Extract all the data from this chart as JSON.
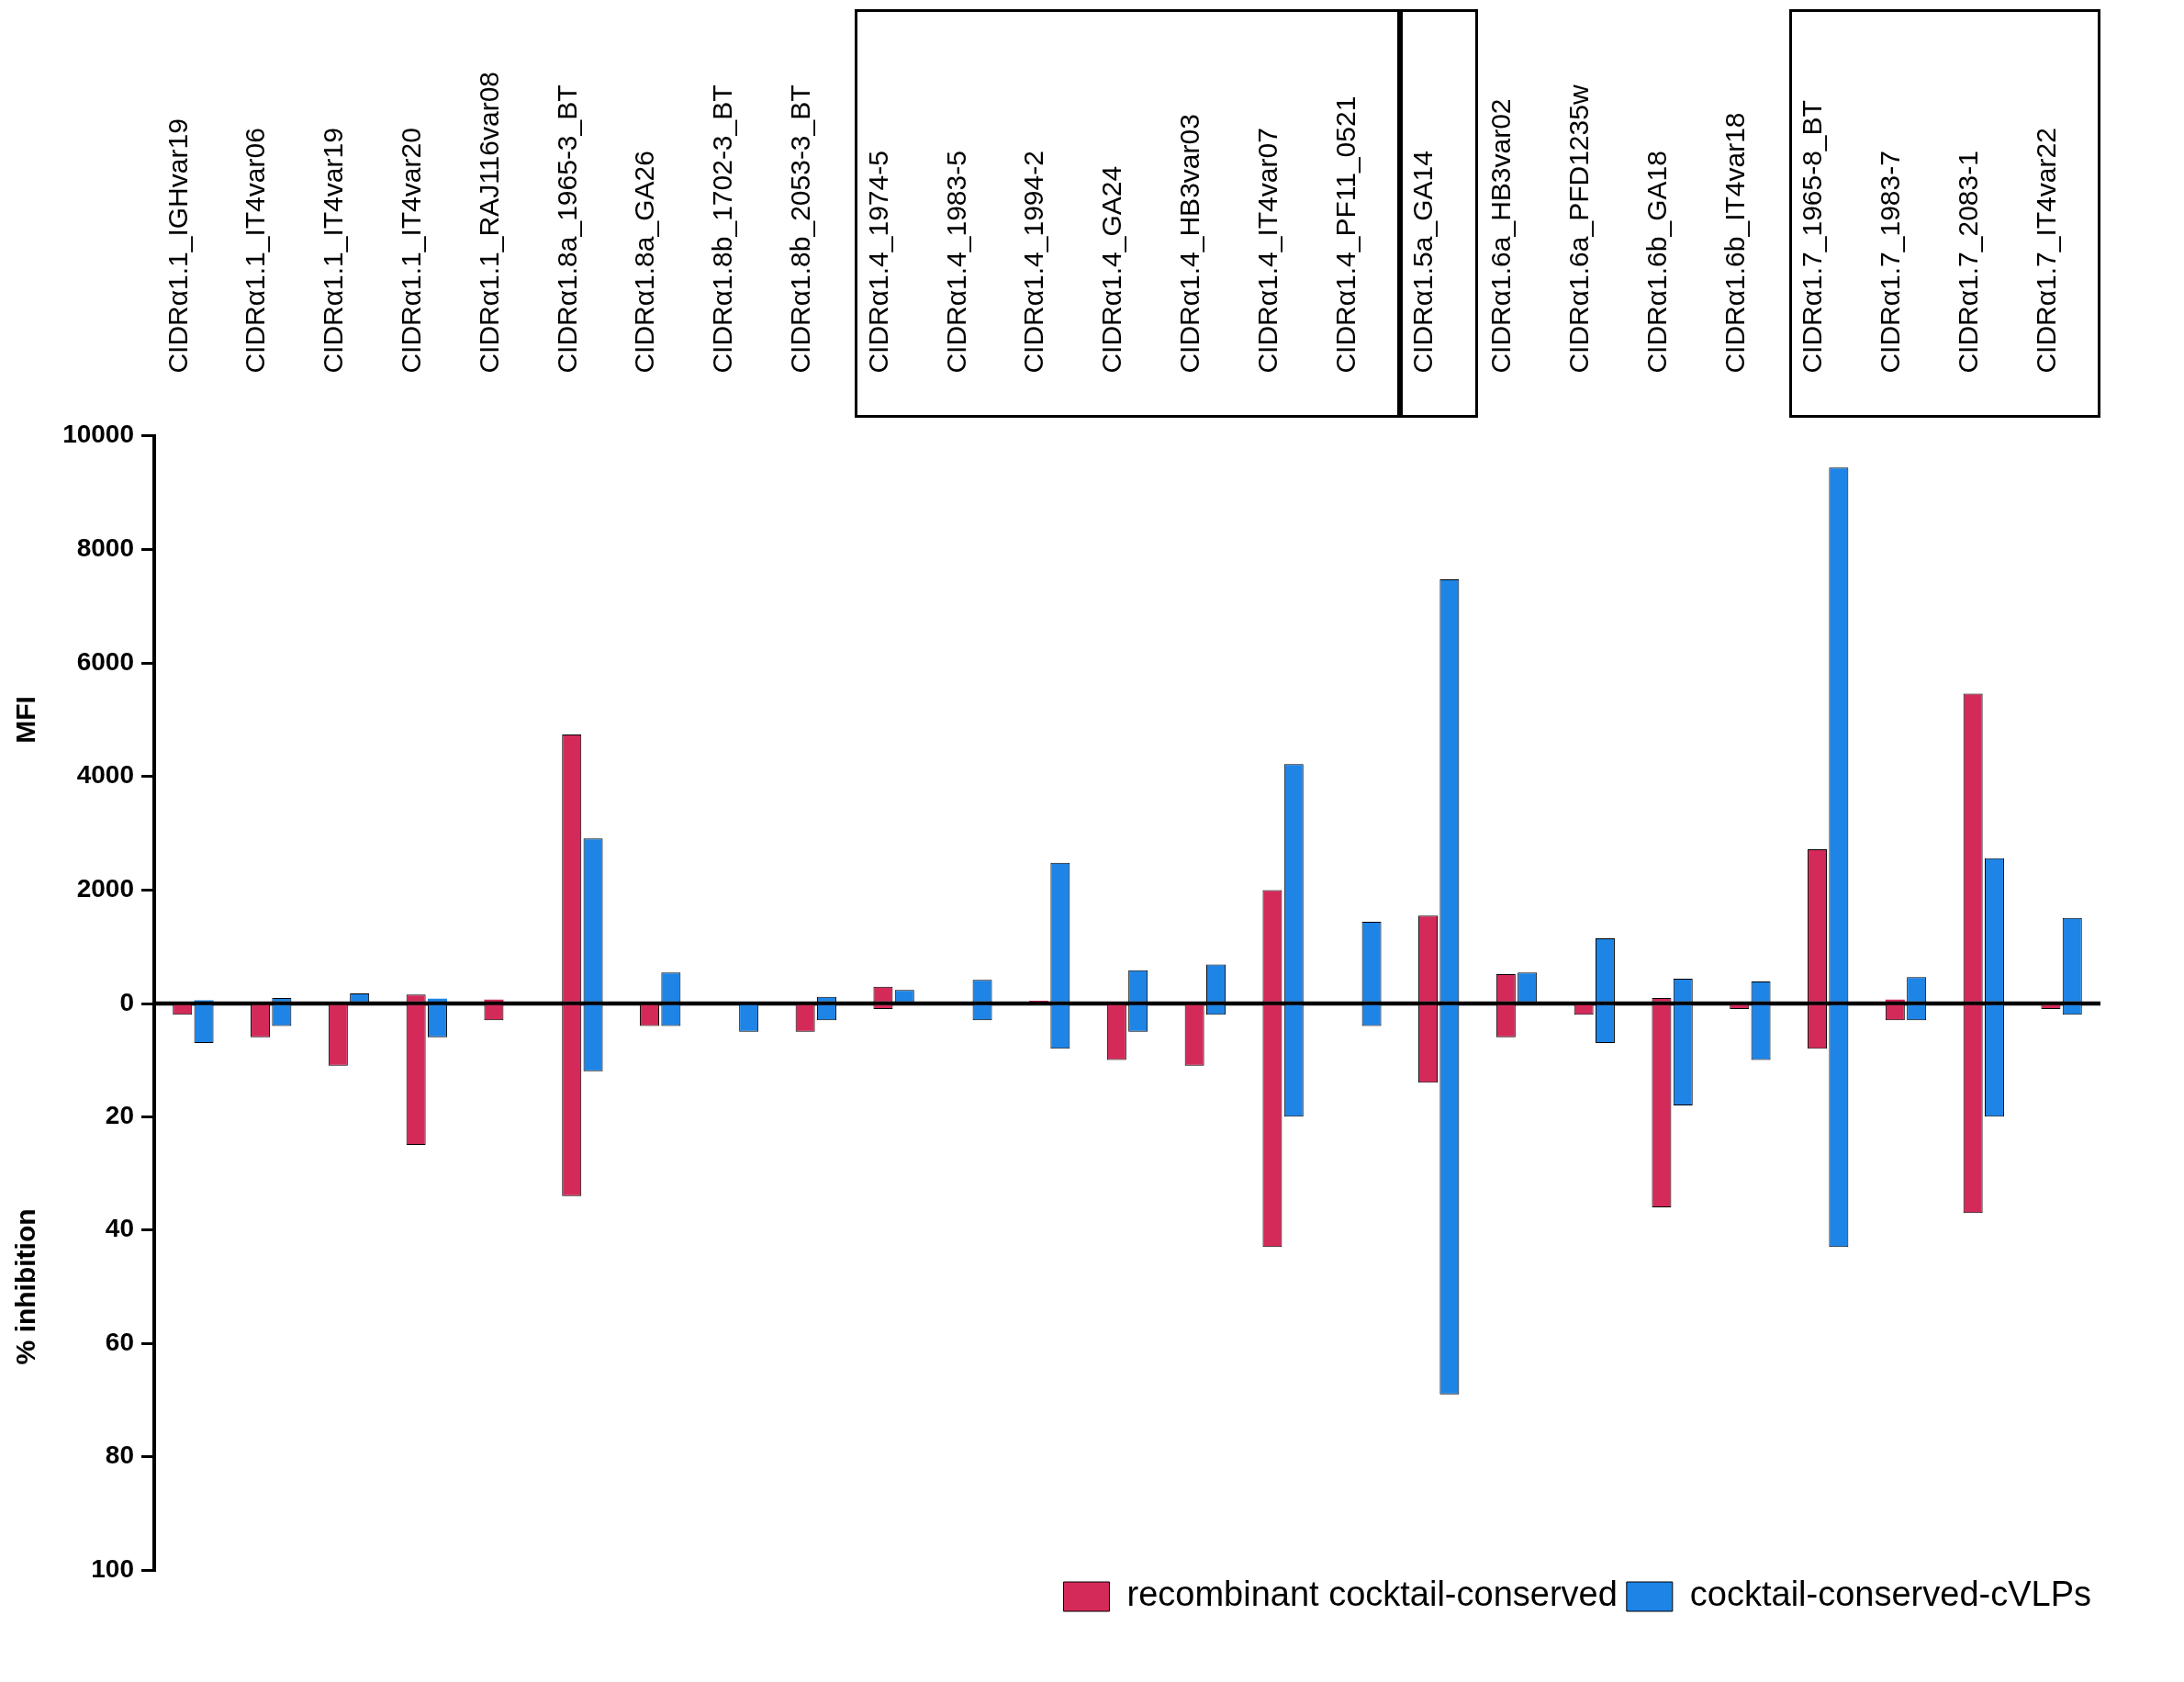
{
  "chart_data": [
    {
      "type": "bar",
      "categories": [
        "CIDRα1.1_IGHvar19",
        "CIDRα1.1_IT4var06",
        "CIDRα1.1_IT4var19",
        "CIDRα1.1_IT4var20",
        "CIDRα1.1_RAJ116var08",
        "CIDRα1.8a_1965-3_BT",
        "CIDRα1.8a_GA26",
        "CIDRα1.8b_1702-3_BT",
        "CIDRα1.8b_2053-3_BT",
        "CIDRα1.4_1974-5",
        "CIDRα1.4_1983-5",
        "CIDRα1.4_1994-2",
        "CIDRα1.4_GA24",
        "CIDRα1.4_HB3var03",
        "CIDRα1.4_IT4var07",
        "CIDRα1.4_PF11_0521",
        "CIDRα1.5a_GA14",
        "CIDRα1.6a_HB3var02",
        "CIDRα1.6a_PFD1235w",
        "CIDRα1.6b_GA18",
        "CIDRα1.6b_IT4var18",
        "CIDRα1.7_1965-8_BT",
        "CIDRα1.7_1983-7",
        "CIDRα1.7_2083-1",
        "CIDRα1.7_IT4var22"
      ],
      "series": [
        {
          "color": "#d42a5a",
          "values": [
            0,
            0,
            0,
            160,
            70,
            4740,
            0,
            0,
            0,
            300,
            0,
            50,
            0,
            0,
            2000,
            0,
            1550,
            520,
            0,
            100,
            0,
            2720,
            70,
            5460,
            0
          ]
        },
        {
          "color": "#1e84e6",
          "values": [
            60,
            100,
            180,
            90,
            null,
            2910,
            550,
            0,
            120,
            240,
            420,
            2480,
            590,
            690,
            4220,
            1440,
            7470,
            550,
            1150,
            440,
            390,
            9440,
            470,
            2560,
            1510
          ]
        }
      ],
      "ylabel": "MFI",
      "ylim": [
        0,
        10000
      ],
      "yticks": [
        0,
        2000,
        4000,
        6000,
        8000,
        10000
      ],
      "grid": false
    },
    {
      "type": "bar",
      "categories": [
        null,
        null,
        null,
        null,
        null,
        null,
        null,
        null,
        null,
        null,
        null,
        null,
        null,
        null,
        null,
        null,
        null,
        null,
        null,
        null,
        null,
        null,
        null,
        null,
        null
      ],
      "series": [
        {
          "name": "recombinant cocktail-conserved",
          "color": "#d42a5a",
          "values": [
            2,
            6,
            11,
            25,
            3,
            34,
            4,
            0,
            5,
            1,
            0,
            0,
            10,
            11,
            43,
            0,
            14,
            6,
            2,
            36,
            1,
            8,
            3,
            37,
            1
          ]
        },
        {
          "name": "cocktail-conserved-cVLPs",
          "color": "#1e84e6",
          "values": [
            7,
            4,
            0,
            6,
            0,
            12,
            4,
            5,
            3,
            0,
            3,
            8,
            5,
            2,
            20,
            4,
            69,
            0,
            7,
            18,
            10,
            43,
            3,
            20,
            2
          ]
        }
      ],
      "ylabel": "% inhibition",
      "ylim": [
        100,
        0
      ],
      "yticks": [
        20,
        40,
        60,
        80,
        100
      ],
      "tick_labels": "y",
      "grid": false,
      "legend": "bottom right"
    }
  ]
}
